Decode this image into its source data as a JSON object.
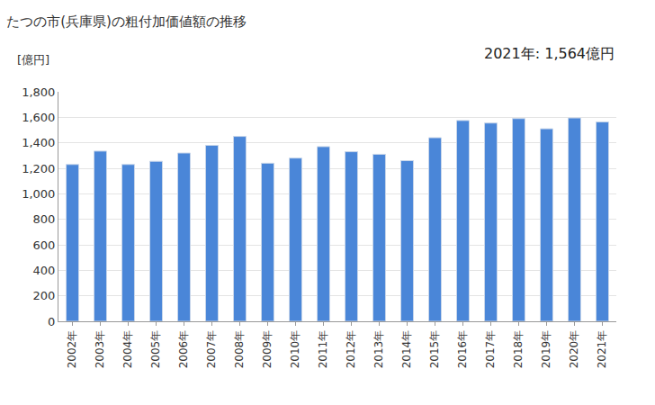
{
  "chart_data": {
    "type": "bar",
    "title": "たつの市(兵庫県)の粗付加価値額の推移",
    "ylabel": "[億円]",
    "annotations": [
      {
        "text": "2021年: 1,564億円"
      }
    ],
    "categories": [
      "2002年",
      "2003年",
      "2004年",
      "2005年",
      "2006年",
      "2007年",
      "2008年",
      "2009年",
      "2010年",
      "2011年",
      "2012年",
      "2013年",
      "2014年",
      "2015年",
      "2016年",
      "2017年",
      "2018年",
      "2019年",
      "2020年",
      "2021年"
    ],
    "values": [
      1230,
      1335,
      1230,
      1255,
      1320,
      1380,
      1450,
      1240,
      1280,
      1370,
      1330,
      1310,
      1260,
      1440,
      1575,
      1555,
      1590,
      1510,
      1595,
      1564
    ],
    "color": "#4a86d8",
    "ylim": [
      0,
      1800
    ],
    "yticks": [
      0,
      200,
      400,
      600,
      800,
      {
        "value": 1000,
        "label": "1,000"
      },
      {
        "value": 1200,
        "label": "1,200"
      },
      {
        "value": 1400,
        "label": "1,400"
      },
      {
        "value": 1600,
        "label": "1,600"
      },
      {
        "value": 1800,
        "label": "1,800"
      }
    ],
    "grid": true
  }
}
